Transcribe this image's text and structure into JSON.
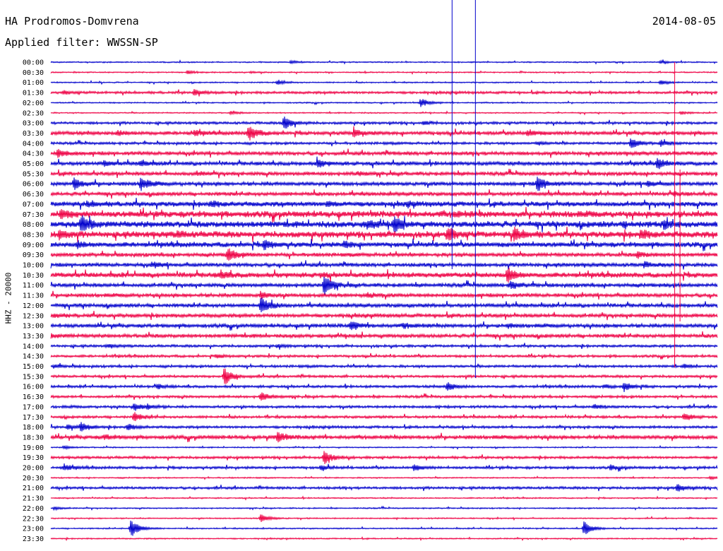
{
  "header": {
    "station": "HA Prodromos-Domvrena",
    "filter": "Applied filter: WWSSN-SP",
    "date": "2014-08-05"
  },
  "chart_data": {
    "type": "helicorder",
    "ylabel": "HHZ - 20000",
    "row_labels": [
      "00:00",
      "00:30",
      "01:00",
      "01:30",
      "02:00",
      "02:30",
      "03:00",
      "03:30",
      "04:00",
      "04:30",
      "05:00",
      "05:30",
      "06:00",
      "06:30",
      "07:00",
      "07:30",
      "08:00",
      "08:30",
      "09:00",
      "09:30",
      "10:00",
      "10:30",
      "11:00",
      "11:30",
      "12:00",
      "12:30",
      "13:00",
      "13:30",
      "14:00",
      "14:30",
      "15:00",
      "15:30",
      "16:00",
      "16:30",
      "17:00",
      "17:30",
      "18:00",
      "18:30",
      "19:00",
      "19:30",
      "20:00",
      "20:30",
      "21:00",
      "21:30",
      "22:00",
      "22:30",
      "23:00",
      "23:30"
    ],
    "colors": [
      "#0000cc",
      "#ee0044"
    ],
    "noise_levels": [
      1,
      1,
      1,
      2,
      1,
      1,
      2,
      3,
      2,
      3,
      3,
      3,
      3,
      3,
      4,
      5,
      5,
      5,
      4,
      3,
      3,
      4,
      3,
      3,
      3,
      3,
      3,
      3,
      2,
      2,
      2,
      2,
      2,
      2,
      2,
      2,
      2,
      3,
      1,
      2,
      2,
      1,
      2,
      1,
      1,
      1,
      1,
      1
    ],
    "events": [
      [
        0,
        0.36,
        2
      ],
      [
        0,
        0.915,
        2
      ],
      [
        1,
        0.205,
        2
      ],
      [
        1,
        0.3,
        1
      ],
      [
        2,
        0.34,
        3
      ],
      [
        2,
        0.915,
        3
      ],
      [
        3,
        0.02,
        2
      ],
      [
        3,
        0.215,
        4
      ],
      [
        4,
        0.555,
        6
      ],
      [
        5,
        0.27,
        2
      ],
      [
        5,
        0.945,
        2
      ],
      [
        6,
        0.35,
        10
      ],
      [
        6,
        0.56,
        2
      ],
      [
        7,
        0.1,
        3
      ],
      [
        7,
        0.215,
        3
      ],
      [
        7,
        0.297,
        10
      ],
      [
        7,
        0.455,
        5
      ],
      [
        7,
        0.715,
        4
      ],
      [
        8,
        0.73,
        2
      ],
      [
        8,
        0.87,
        8
      ],
      [
        8,
        0.915,
        4
      ],
      [
        9,
        0.01,
        5
      ],
      [
        10,
        0.08,
        3
      ],
      [
        10,
        0.135,
        4
      ],
      [
        10,
        0.4,
        5
      ],
      [
        10,
        0.91,
        7
      ],
      [
        11,
        0.22,
        2
      ],
      [
        11,
        0.46,
        2
      ],
      [
        12,
        0.035,
        8
      ],
      [
        12,
        0.135,
        8
      ],
      [
        12,
        0.73,
        10
      ],
      [
        12,
        0.895,
        4
      ],
      [
        13,
        0.935,
        2
      ],
      [
        14,
        0.055,
        3
      ],
      [
        14,
        0.24,
        3
      ],
      [
        14,
        0.415,
        3
      ],
      [
        14,
        0.535,
        2
      ],
      [
        15,
        0.015,
        5
      ],
      [
        15,
        0.605,
        2
      ],
      [
        16,
        0.045,
        12
      ],
      [
        16,
        0.475,
        5
      ],
      [
        16,
        0.515,
        10
      ],
      [
        16,
        0.86,
        2
      ],
      [
        16,
        0.92,
        5
      ],
      [
        17,
        0.013,
        6
      ],
      [
        17,
        0.19,
        3
      ],
      [
        17,
        0.595,
        8
      ],
      [
        17,
        0.695,
        8
      ],
      [
        17,
        0.885,
        5
      ],
      [
        18,
        0.04,
        4
      ],
      [
        18,
        0.32,
        6
      ],
      [
        18,
        0.44,
        4
      ],
      [
        19,
        0.265,
        9
      ],
      [
        19,
        0.88,
        4
      ],
      [
        20,
        0.155,
        3
      ],
      [
        20,
        0.89,
        3
      ],
      [
        21,
        0.255,
        5
      ],
      [
        21,
        0.405,
        2
      ],
      [
        21,
        0.685,
        10
      ],
      [
        22,
        0.41,
        14
      ],
      [
        22,
        0.69,
        5
      ],
      [
        23,
        0.315,
        4
      ],
      [
        23,
        0.475,
        3
      ],
      [
        24,
        0.315,
        12
      ],
      [
        25,
        0.005,
        2
      ],
      [
        26,
        0.45,
        6
      ],
      [
        26,
        0.53,
        3
      ],
      [
        26,
        0.685,
        2
      ],
      [
        27,
        0.0,
        2
      ],
      [
        28,
        0.085,
        2
      ],
      [
        28,
        0.34,
        2
      ],
      [
        29,
        0.25,
        2
      ],
      [
        30,
        0.005,
        2
      ],
      [
        30,
        0.95,
        2
      ],
      [
        31,
        0.26,
        12
      ],
      [
        32,
        0.16,
        3
      ],
      [
        32,
        0.595,
        6
      ],
      [
        32,
        0.83,
        2
      ],
      [
        32,
        0.86,
        6
      ],
      [
        33,
        0.315,
        6
      ],
      [
        34,
        0.125,
        5
      ],
      [
        34,
        0.145,
        3
      ],
      [
        34,
        0.815,
        3
      ],
      [
        35,
        0.125,
        6
      ],
      [
        35,
        0.95,
        5
      ],
      [
        36,
        0.025,
        3
      ],
      [
        36,
        0.045,
        6
      ],
      [
        36,
        0.115,
        4
      ],
      [
        37,
        0.08,
        3
      ],
      [
        37,
        0.34,
        7
      ],
      [
        38,
        0.02,
        2
      ],
      [
        39,
        0.41,
        10
      ],
      [
        40,
        0.02,
        4
      ],
      [
        40,
        0.405,
        3
      ],
      [
        40,
        0.545,
        4
      ],
      [
        40,
        0.84,
        3
      ],
      [
        41,
        0.99,
        2
      ],
      [
        42,
        0.94,
        5
      ],
      [
        44,
        0.005,
        2
      ],
      [
        45,
        0.315,
        6
      ],
      [
        46,
        0.12,
        14
      ],
      [
        46,
        0.8,
        10
      ]
    ],
    "spikes": [
      {
        "x": 0.602,
        "top": 0,
        "bottom": 381,
        "color": "#0000cc"
      },
      {
        "x": 0.637,
        "top": 0,
        "bottom": 535,
        "color": "#0000cc"
      },
      {
        "x": 0.936,
        "top": 88,
        "bottom": 520,
        "color": "#ee0044"
      },
      {
        "x": 0.944,
        "top": 240,
        "bottom": 455,
        "color": "#ee0044"
      }
    ]
  }
}
